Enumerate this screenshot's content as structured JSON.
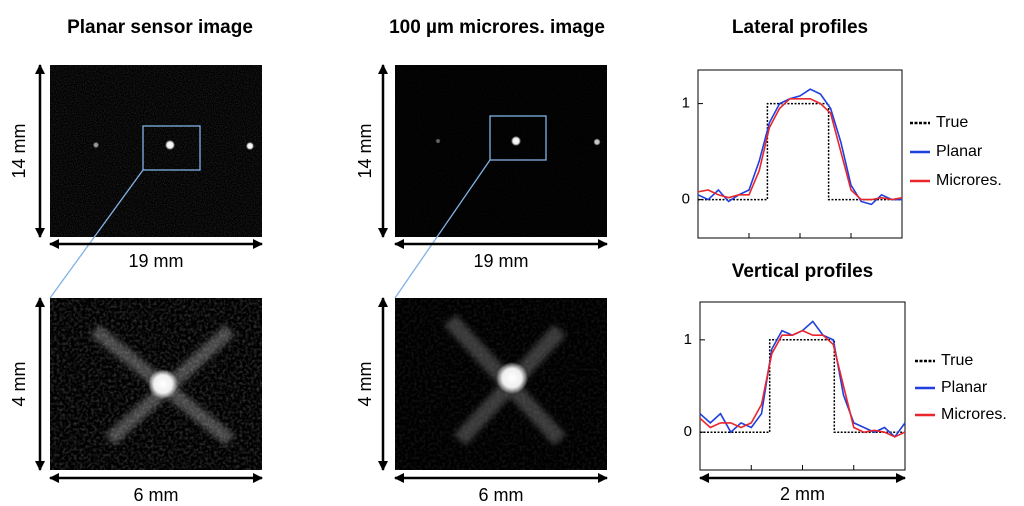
{
  "panels": [
    {
      "title": "Planar sensor image",
      "top_height": "14 mm",
      "top_width": "19 mm",
      "zoom_height": "4 mm",
      "zoom_width": "6 mm"
    },
    {
      "title": "100 µm microres. image",
      "top_height": "14 mm",
      "top_width": "19 mm",
      "zoom_height": "4 mm",
      "zoom_width": "6 mm"
    }
  ],
  "chart_data": [
    {
      "type": "line",
      "title": "Lateral profiles",
      "xlim": [
        0,
        2
      ],
      "xticks": [
        0.5,
        1,
        1.5
      ],
      "ylim": [
        -0.4,
        1.35
      ],
      "yticks": [
        0,
        1
      ],
      "series": [
        {
          "name": "True",
          "color": "#000000",
          "style": "dotted",
          "x": [
            0,
            0.68,
            0.68,
            1.28,
            1.28,
            2
          ],
          "values": [
            0,
            0,
            1,
            1,
            0,
            0
          ]
        },
        {
          "name": "Planar",
          "color": "#1f3fe0",
          "style": "solid",
          "x": [
            0,
            0.1,
            0.2,
            0.3,
            0.4,
            0.5,
            0.6,
            0.7,
            0.8,
            0.9,
            1,
            1.1,
            1.2,
            1.3,
            1.4,
            1.5,
            1.6,
            1.7,
            1.8,
            1.9,
            2
          ],
          "values": [
            0.05,
            0,
            0.1,
            -0.02,
            0.05,
            0.1,
            0.4,
            0.8,
            1.0,
            1.05,
            1.08,
            1.15,
            1.1,
            0.95,
            0.6,
            0.15,
            -0.02,
            -0.05,
            0.05,
            0,
            0
          ]
        },
        {
          "name": "Microres.",
          "color": "#e8262b",
          "style": "solid",
          "x": [
            0,
            0.1,
            0.2,
            0.3,
            0.4,
            0.5,
            0.6,
            0.7,
            0.8,
            0.9,
            1,
            1.1,
            1.2,
            1.3,
            1.4,
            1.5,
            1.6,
            1.7,
            1.8,
            1.9,
            2
          ],
          "values": [
            0.08,
            0.1,
            0.05,
            0.02,
            0.05,
            0.05,
            0.3,
            0.75,
            0.95,
            1.05,
            1.05,
            1.05,
            1.0,
            0.9,
            0.5,
            0.1,
            0.0,
            0.0,
            0.02,
            0,
            0.02
          ]
        }
      ]
    },
    {
      "type": "line",
      "title": "Vertical profiles",
      "x_label": "2 mm",
      "xlim": [
        0,
        2
      ],
      "xticks": [
        0.5,
        1,
        1.5
      ],
      "ylim": [
        -0.41,
        1.41
      ],
      "yticks": [
        0,
        1
      ],
      "series": [
        {
          "name": "True",
          "color": "#000000",
          "style": "dotted",
          "x": [
            0,
            0.68,
            0.68,
            1.31,
            1.31,
            2
          ],
          "values": [
            0,
            0,
            1,
            1,
            0,
            0
          ]
        },
        {
          "name": "Planar",
          "color": "#1f3fe0",
          "style": "solid",
          "x": [
            0,
            0.1,
            0.2,
            0.3,
            0.4,
            0.5,
            0.6,
            0.7,
            0.8,
            0.9,
            1,
            1.1,
            1.2,
            1.3,
            1.4,
            1.5,
            1.6,
            1.7,
            1.8,
            1.9,
            2
          ],
          "values": [
            0.2,
            0.1,
            0.2,
            0.0,
            0.1,
            0.05,
            0.2,
            0.9,
            1.1,
            1.05,
            1.1,
            1.2,
            1.05,
            1.0,
            0.4,
            0.1,
            0.05,
            0.0,
            0.05,
            -0.05,
            0.1
          ]
        },
        {
          "name": "Microres.",
          "color": "#e8262b",
          "style": "solid",
          "x": [
            0,
            0.1,
            0.2,
            0.3,
            0.4,
            0.5,
            0.6,
            0.7,
            0.8,
            0.9,
            1,
            1.1,
            1.2,
            1.3,
            1.4,
            1.5,
            1.6,
            1.7,
            1.8,
            1.9,
            2
          ],
          "values": [
            0.15,
            0.05,
            0.1,
            0.1,
            0.05,
            0.1,
            0.3,
            0.85,
            1.05,
            1.05,
            1.1,
            1.05,
            1.05,
            0.95,
            0.5,
            0.05,
            0.0,
            0.02,
            0.0,
            -0.05,
            0.0
          ]
        }
      ]
    }
  ]
}
